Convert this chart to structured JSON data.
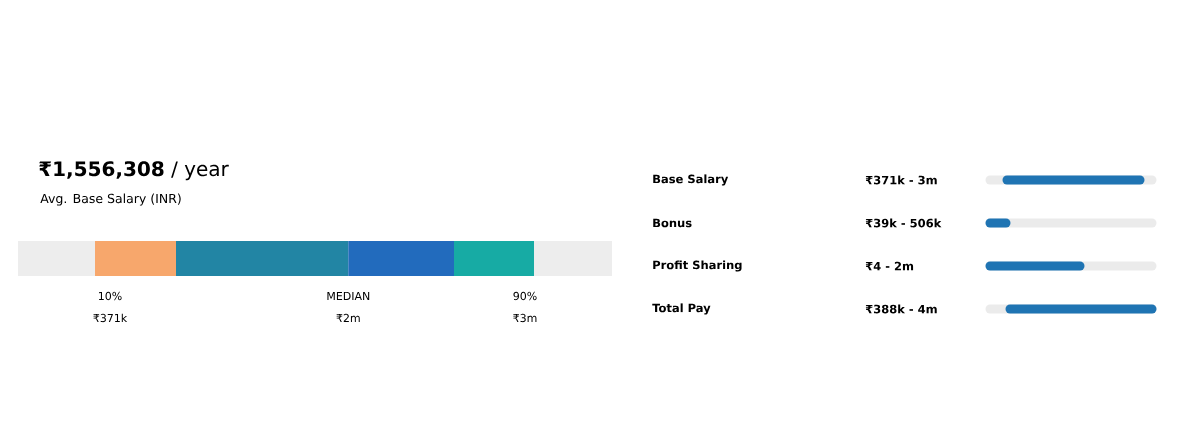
{
  "chart_data": [
    {
      "type": "other",
      "title": "**₹1,556,308** / year",
      "subtitle": "Avg. Base Salary (INR)",
      "categories": [
        "10%",
        "MEDIAN",
        "90%"
      ],
      "values": [
        371000,
        2000000,
        3000000
      ],
      "value_labels": [
        "₹371k",
        "₹2m",
        "₹3m"
      ],
      "colors": [
        "#f7a76c",
        "#2b86ad",
        "#17aba4"
      ]
    },
    {
      "type": "other",
      "categories": [
        "Base Salary",
        "Bonus",
        "Profit Sharing",
        "Total Pay"
      ],
      "value_labels": [
        "₹371k - 3m",
        "₹39k - 506k",
        "₹4 - 2m",
        "₹388k - 4m"
      ]
    }
  ]
}
